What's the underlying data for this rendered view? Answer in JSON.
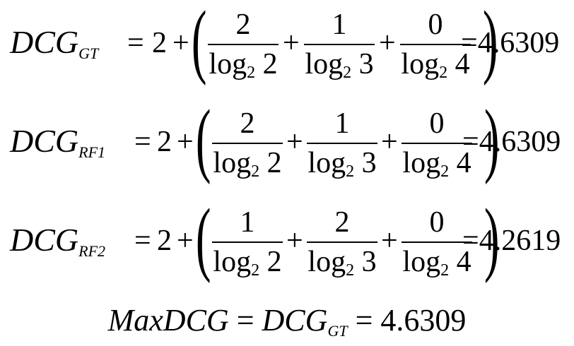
{
  "equations": [
    {
      "lhs": "DCG",
      "lhs_sub": "GT",
      "leading": "2",
      "numerators": [
        "2",
        "1",
        "0"
      ],
      "denominators": [
        {
          "base": "log",
          "sub": "2",
          "arg": "2"
        },
        {
          "base": "log",
          "sub": "2",
          "arg": "3"
        },
        {
          "base": "log",
          "sub": "2",
          "arg": "4"
        }
      ],
      "result": "4.6309"
    },
    {
      "lhs": "DCG",
      "lhs_sub": "RF1",
      "leading": "2",
      "numerators": [
        "2",
        "1",
        "0"
      ],
      "denominators": [
        {
          "base": "log",
          "sub": "2",
          "arg": "2"
        },
        {
          "base": "log",
          "sub": "2",
          "arg": "3"
        },
        {
          "base": "log",
          "sub": "2",
          "arg": "4"
        }
      ],
      "result": "4.6309"
    },
    {
      "lhs": "DCG",
      "lhs_sub": "RF2",
      "leading": "2",
      "numerators": [
        "1",
        "2",
        "0"
      ],
      "denominators": [
        {
          "base": "log",
          "sub": "2",
          "arg": "2"
        },
        {
          "base": "log",
          "sub": "2",
          "arg": "3"
        },
        {
          "base": "log",
          "sub": "2",
          "arg": "4"
        }
      ],
      "result": "4.2619"
    }
  ],
  "max_line": {
    "lhs": "MaxDCG",
    "mid": "DCG",
    "mid_sub": "GT",
    "result": "4.6309"
  }
}
